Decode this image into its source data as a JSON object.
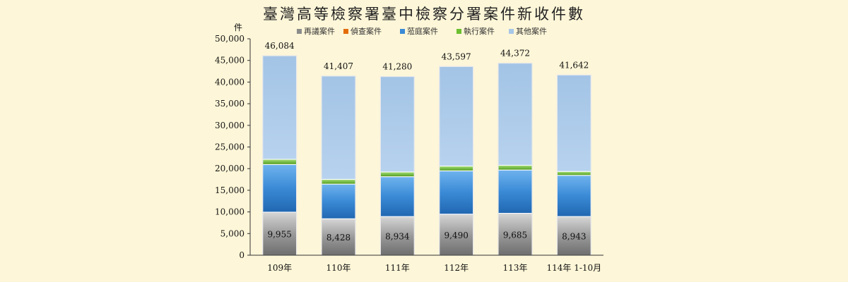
{
  "chart_data": {
    "type": "bar",
    "stacked": true,
    "title": "臺灣高等檢察署臺中檢察分署案件新收件數",
    "y_unit_label": "件",
    "categories": [
      "109年",
      "110年",
      "111年",
      "112年",
      "113年",
      "114年 1-10月"
    ],
    "ylim": [
      0,
      50000
    ],
    "yticks": [
      "0",
      "5,000",
      "10,000",
      "15,000",
      "20,000",
      "25,000",
      "30,000",
      "35,000",
      "40,000",
      "45,000",
      "50,000"
    ],
    "grid": false,
    "legend_position": "top",
    "series": [
      {
        "name": "再議案件",
        "color": "#8c8c8c",
        "values": [
          9955,
          8428,
          8934,
          9490,
          9685,
          8943
        ]
      },
      {
        "name": "偵查案件",
        "color": "#e36c09",
        "values": [
          0,
          0,
          0,
          0,
          0,
          0
        ]
      },
      {
        "name": "蒞庭案件",
        "color": "#3a8ad6",
        "values": [
          11000,
          8000,
          9200,
          10000,
          10000,
          9500
        ]
      },
      {
        "name": "執行案件",
        "color": "#6cbf30",
        "values": [
          1200,
          1100,
          1100,
          1100,
          1100,
          900
        ]
      },
      {
        "name": "其他案件",
        "color": "#a7c7e8",
        "values": [
          23929,
          23879,
          22046,
          23007,
          23587,
          22299
        ]
      }
    ],
    "bottom_labels": [
      "9,955",
      "8,428",
      "8,934",
      "9,490",
      "9,685",
      "8,943"
    ],
    "total_labels": [
      "46,084",
      "41,407",
      "41,280",
      "43,597",
      "44,372",
      "41,642"
    ]
  }
}
